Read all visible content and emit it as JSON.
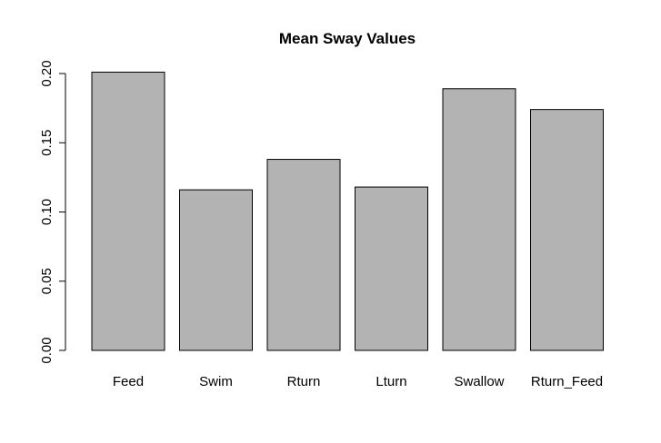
{
  "chart_data": {
    "type": "bar",
    "title": "Mean Sway Values",
    "xlabel": "",
    "ylabel": "",
    "categories": [
      "Feed",
      "Swim",
      "Rturn",
      "Lturn",
      "Swallow",
      "Rturn_Feed"
    ],
    "values": [
      0.201,
      0.116,
      0.138,
      0.118,
      0.189,
      0.174
    ],
    "ylim": [
      0,
      0.2
    ],
    "y_ticks": [
      "0.00",
      "0.05",
      "0.10",
      "0.15",
      "0.20"
    ],
    "grid": false,
    "legend": "none",
    "bar_fill": "#b3b3b3",
    "bar_stroke": "#000000"
  }
}
